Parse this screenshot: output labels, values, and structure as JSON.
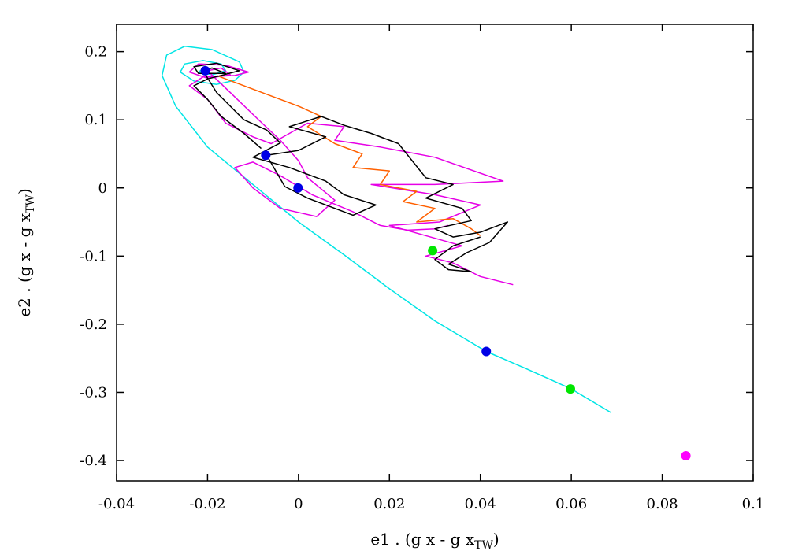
{
  "chart_data": {
    "type": "scatter",
    "title": "",
    "xlabel": {
      "main": "e1 . (g x - g x",
      "sub": "TW",
      "close": ")"
    },
    "ylabel": {
      "main": "e2 . (g x - g x",
      "sub": "TW",
      "close": ")"
    },
    "xlim": [
      -0.04,
      0.1
    ],
    "ylim": [
      -0.43,
      0.24
    ],
    "xticks": [
      {
        "value": -0.04,
        "label": "-0.04"
      },
      {
        "value": -0.02,
        "label": "-0.02"
      },
      {
        "value": 0,
        "label": "0"
      },
      {
        "value": 0.02,
        "label": "0.02"
      },
      {
        "value": 0.04,
        "label": "0.04"
      },
      {
        "value": 0.06,
        "label": "0.06"
      },
      {
        "value": 0.08,
        "label": "0.08"
      },
      {
        "value": 0.1,
        "label": "0.1"
      }
    ],
    "yticks": [
      {
        "value": 0.2,
        "label": "0.2"
      },
      {
        "value": 0.1,
        "label": "0.1"
      },
      {
        "value": 0,
        "label": "0"
      },
      {
        "value": -0.1,
        "label": "-0.1"
      },
      {
        "value": -0.2,
        "label": "-0.2"
      },
      {
        "value": -0.3,
        "label": "-0.3"
      },
      {
        "value": -0.4,
        "label": "-0.4"
      }
    ],
    "grid": false,
    "legend": "none",
    "series": [
      {
        "color": "#00e5e5",
        "kind": "line",
        "points": [
          [
            0.0688,
            -0.33
          ],
          [
            0.06,
            -0.295
          ],
          [
            0.05,
            -0.265
          ],
          [
            0.0413,
            -0.24
          ],
          [
            0.03,
            -0.195
          ],
          [
            0.02,
            -0.148
          ],
          [
            0.01,
            -0.098
          ],
          [
            0.0,
            -0.05
          ],
          [
            -0.01,
            0.005
          ],
          [
            -0.02,
            0.06
          ],
          [
            -0.027,
            0.12
          ],
          [
            -0.03,
            0.165
          ],
          [
            -0.029,
            0.195
          ],
          [
            -0.025,
            0.208
          ],
          [
            -0.019,
            0.203
          ],
          [
            -0.013,
            0.185
          ],
          [
            -0.012,
            0.17
          ],
          [
            -0.014,
            0.158
          ],
          [
            -0.018,
            0.152
          ],
          [
            -0.023,
            0.157
          ],
          [
            -0.026,
            0.17
          ],
          [
            -0.025,
            0.182
          ],
          [
            -0.021,
            0.187
          ],
          [
            -0.017,
            0.182
          ],
          [
            -0.016,
            0.172
          ],
          [
            -0.019,
            0.166
          ],
          [
            -0.022,
            0.17
          ],
          [
            -0.021,
            0.175
          ]
        ]
      },
      {
        "color": "#e600e6",
        "kind": "line",
        "points": [
          [
            0.0472,
            -0.142
          ],
          [
            0.04,
            -0.13
          ],
          [
            0.034,
            -0.11
          ],
          [
            0.028,
            -0.1
          ],
          [
            0.036,
            -0.085
          ],
          [
            0.02,
            -0.055
          ],
          [
            0.031,
            -0.05
          ],
          [
            0.04,
            -0.025
          ],
          [
            0.03,
            -0.01
          ],
          [
            0.016,
            0.005
          ],
          [
            0.03,
            0.005
          ],
          [
            0.045,
            0.01
          ],
          [
            0.03,
            0.045
          ],
          [
            0.018,
            0.06
          ],
          [
            0.008,
            0.07
          ],
          [
            0.01,
            0.09
          ],
          [
            0.002,
            0.095
          ],
          [
            -0.002,
            0.08
          ],
          [
            -0.006,
            0.065
          ],
          [
            -0.01,
            0.075
          ],
          [
            -0.016,
            0.095
          ],
          [
            -0.02,
            0.13
          ],
          [
            -0.024,
            0.15
          ],
          [
            -0.021,
            0.163
          ],
          [
            -0.014,
            0.165
          ],
          [
            -0.011,
            0.17
          ],
          [
            -0.016,
            0.18
          ],
          [
            -0.022,
            0.182
          ],
          [
            -0.024,
            0.17
          ],
          [
            -0.02,
            0.161
          ],
          [
            -0.015,
            0.166
          ],
          [
            -0.017,
            0.176
          ],
          [
            -0.02,
            0.172
          ],
          [
            -0.015,
            0.14
          ],
          [
            -0.008,
            0.095
          ],
          [
            -0.004,
            0.07
          ],
          [
            0.0,
            0.04
          ],
          [
            0.002,
            0.015
          ],
          [
            0.008,
            -0.018
          ],
          [
            0.004,
            -0.042
          ],
          [
            -0.004,
            -0.03
          ],
          [
            -0.01,
            0.0
          ],
          [
            -0.014,
            0.03
          ],
          [
            -0.01,
            0.038
          ],
          [
            -0.004,
            0.018
          ],
          [
            0.003,
            -0.01
          ],
          [
            0.012,
            -0.035
          ],
          [
            0.018,
            -0.055
          ],
          [
            0.024,
            -0.062
          ],
          [
            0.03,
            -0.06
          ],
          [
            0.033,
            -0.055
          ]
        ]
      },
      {
        "color": "#ff6000",
        "kind": "line",
        "points": [
          [
            -0.018,
            0.165
          ],
          [
            -0.012,
            0.15
          ],
          [
            -0.006,
            0.135
          ],
          [
            0.0,
            0.12
          ],
          [
            0.005,
            0.105
          ],
          [
            0.002,
            0.09
          ],
          [
            0.008,
            0.065
          ],
          [
            0.014,
            0.05
          ],
          [
            0.012,
            0.03
          ],
          [
            0.02,
            0.025
          ],
          [
            0.018,
            0.005
          ],
          [
            0.026,
            -0.005
          ],
          [
            0.023,
            -0.02
          ],
          [
            0.03,
            -0.03
          ],
          [
            0.026,
            -0.05
          ],
          [
            0.034,
            -0.045
          ],
          [
            0.038,
            -0.06
          ],
          [
            0.04,
            -0.07
          ]
        ]
      },
      {
        "color": "#000000",
        "kind": "line",
        "points": [
          [
            -0.0082,
            0.058
          ],
          [
            -0.012,
            0.08
          ],
          [
            -0.017,
            0.105
          ],
          [
            -0.02,
            0.13
          ],
          [
            -0.023,
            0.15
          ],
          [
            -0.02,
            0.16
          ],
          [
            -0.013,
            0.172
          ],
          [
            -0.018,
            0.183
          ],
          [
            -0.023,
            0.178
          ],
          [
            -0.022,
            0.168
          ],
          [
            -0.016,
            0.168
          ],
          [
            -0.019,
            0.176
          ],
          [
            -0.021,
            0.172
          ],
          [
            -0.018,
            0.14
          ],
          [
            -0.012,
            0.1
          ],
          [
            -0.007,
            0.085
          ],
          [
            -0.004,
            0.066
          ],
          [
            -0.01,
            0.045
          ],
          [
            -0.002,
            0.03
          ],
          [
            0.006,
            0.01
          ],
          [
            0.01,
            -0.01
          ],
          [
            0.017,
            -0.025
          ],
          [
            0.012,
            -0.04
          ],
          [
            0.008,
            -0.03
          ],
          [
            0.002,
            -0.015
          ],
          [
            -0.003,
            0.002
          ],
          [
            -0.007,
            0.048
          ],
          [
            0.0,
            0.055
          ],
          [
            0.006,
            0.075
          ],
          [
            -0.002,
            0.09
          ],
          [
            0.005,
            0.105
          ],
          [
            0.01,
            0.092
          ],
          [
            0.016,
            0.08
          ],
          [
            0.022,
            0.065
          ],
          [
            0.025,
            0.04
          ],
          [
            0.028,
            0.015
          ],
          [
            0.034,
            0.005
          ],
          [
            0.028,
            -0.015
          ],
          [
            0.036,
            -0.03
          ],
          [
            0.038,
            -0.048
          ],
          [
            0.03,
            -0.06
          ],
          [
            0.034,
            -0.072
          ],
          [
            0.04,
            -0.065
          ],
          [
            0.046,
            -0.05
          ],
          [
            0.042,
            -0.08
          ],
          [
            0.037,
            -0.095
          ],
          [
            0.033,
            -0.112
          ],
          [
            0.038,
            -0.123
          ],
          [
            0.033,
            -0.12
          ],
          [
            0.03,
            -0.105
          ],
          [
            0.034,
            -0.085
          ],
          [
            0.04,
            -0.072
          ]
        ]
      }
    ],
    "markers": [
      {
        "x": -0.0205,
        "y": 0.172,
        "color": "#0000e6"
      },
      {
        "x": -0.0072,
        "y": 0.048,
        "color": "#0000e6"
      },
      {
        "x": -0.0001,
        "y": 0.0,
        "color": "#0000e6"
      },
      {
        "x": 0.0413,
        "y": -0.24,
        "color": "#0000e6"
      },
      {
        "x": 0.0295,
        "y": -0.092,
        "color": "#00e600"
      },
      {
        "x": 0.0598,
        "y": -0.295,
        "color": "#00e600"
      },
      {
        "x": 0.0852,
        "y": -0.393,
        "color": "#ff00ff"
      }
    ]
  }
}
